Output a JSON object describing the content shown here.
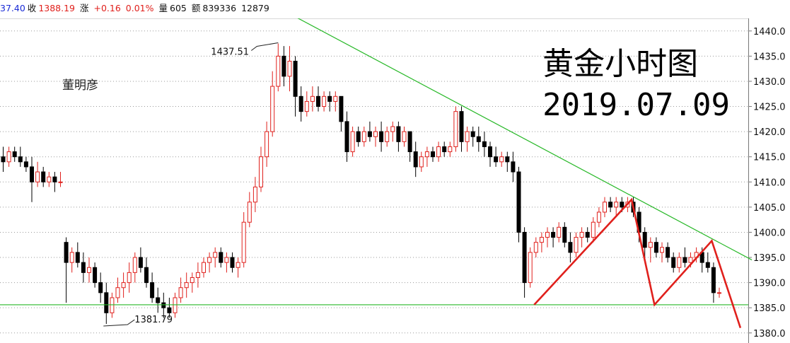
{
  "info_bar": {
    "open_label": "37.40",
    "close_label": "收",
    "close_value": "1388.19",
    "change_label": "涨",
    "change_value": "+0.16",
    "change_pct": "0.01%",
    "volume_label": "量",
    "volume_value": "605",
    "amount_label": "额",
    "amount_value": "839336",
    "extra_value": "12879"
  },
  "title_line1": "黄金小时图",
  "title_line2": "2019.07.09",
  "author": "董明彦",
  "colors": {
    "up": "#e0201c",
    "down": "#000000",
    "trendline": "#27b827",
    "pattern": "#e0201c",
    "support": "#27b827"
  },
  "chart_data": {
    "type": "candlestick",
    "ylim": [
      1378.0,
      1442.5
    ],
    "y_ticks": [
      "1440.0",
      "1435.0",
      "1430.0",
      "1425.0",
      "1420.0",
      "1415.0",
      "1410.0",
      "1405.0",
      "1400.0",
      "1395.0",
      "1390.0",
      "1385.0",
      "1380.0"
    ],
    "annotations": [
      {
        "text": "1437.51",
        "candle": 48,
        "price": 1437.51
      },
      {
        "text": "1381.79",
        "candle": 18,
        "price": 1381.79
      }
    ],
    "support_level": 1385.6,
    "trendline": {
      "from": [
        51,
        1443.0
      ],
      "to": [
        131,
        1394.5
      ]
    },
    "zigzag": [
      [
        93,
        1385.6
      ],
      [
        110,
        1406.5
      ],
      [
        114,
        1385.6
      ],
      [
        124,
        1398.3
      ],
      [
        129,
        1381.0
      ]
    ],
    "candles": [
      [
        1415,
        1417,
        1412,
        1414
      ],
      [
        1414,
        1417,
        1413,
        1416
      ],
      [
        1416,
        1417,
        1414,
        1415
      ],
      [
        1415,
        1417,
        1413,
        1414
      ],
      [
        1414,
        1415,
        1412,
        1413
      ],
      [
        1413,
        1415,
        1406,
        1410
      ],
      [
        1410,
        1414,
        1409,
        1412
      ],
      [
        1412,
        1413,
        1409,
        1410
      ],
      [
        1410,
        1412,
        1409,
        1411
      ],
      [
        1411,
        1412,
        1408,
        1410
      ],
      [
        1410,
        1412,
        1409,
        1410
      ],
      [
        1398,
        1399,
        1386,
        1394
      ],
      [
        1394,
        1397,
        1392,
        1396
      ],
      [
        1396,
        1398,
        1393,
        1394
      ],
      [
        1394,
        1396,
        1390,
        1392
      ],
      [
        1392,
        1395,
        1390,
        1393
      ],
      [
        1393,
        1394,
        1389,
        1390
      ],
      [
        1390,
        1392,
        1386,
        1388
      ],
      [
        1388,
        1390,
        1381.79,
        1384
      ],
      [
        1384,
        1388,
        1383,
        1387
      ],
      [
        1387,
        1391,
        1386,
        1389
      ],
      [
        1389,
        1392,
        1387,
        1390
      ],
      [
        1390,
        1394,
        1388,
        1392
      ],
      [
        1392,
        1396,
        1390,
        1395
      ],
      [
        1395,
        1397,
        1392,
        1393
      ],
      [
        1393,
        1395,
        1389,
        1390
      ],
      [
        1390,
        1392,
        1386,
        1387
      ],
      [
        1387,
        1389,
        1384,
        1386
      ],
      [
        1386,
        1388,
        1383,
        1385
      ],
      [
        1385,
        1387,
        1383,
        1384
      ],
      [
        1384,
        1388,
        1383,
        1387
      ],
      [
        1387,
        1391,
        1386,
        1389
      ],
      [
        1389,
        1392,
        1387,
        1390
      ],
      [
        1390,
        1392,
        1388,
        1391
      ],
      [
        1391,
        1394,
        1389,
        1392
      ],
      [
        1392,
        1395,
        1391,
        1394
      ],
      [
        1394,
        1396,
        1392,
        1395
      ],
      [
        1395,
        1397,
        1393,
        1396
      ],
      [
        1396,
        1397,
        1393,
        1394
      ],
      [
        1394,
        1396,
        1392,
        1395
      ],
      [
        1395,
        1396,
        1392,
        1393
      ],
      [
        1393,
        1395,
        1391,
        1394
      ],
      [
        1394,
        1404,
        1393,
        1402
      ],
      [
        1402,
        1408,
        1401,
        1406
      ],
      [
        1406,
        1411,
        1404,
        1409
      ],
      [
        1409,
        1417,
        1408,
        1415
      ],
      [
        1415,
        1422,
        1413,
        1420
      ],
      [
        1420,
        1432,
        1419,
        1429
      ],
      [
        1429,
        1437.51,
        1428,
        1435
      ],
      [
        1435,
        1437,
        1429,
        1431
      ],
      [
        1431,
        1437,
        1428,
        1434
      ],
      [
        1434,
        1435,
        1423,
        1427
      ],
      [
        1427,
        1429,
        1422,
        1424
      ],
      [
        1424,
        1428,
        1423,
        1426
      ],
      [
        1426,
        1429,
        1424,
        1427
      ],
      [
        1427,
        1429,
        1424,
        1425
      ],
      [
        1425,
        1428,
        1424,
        1427
      ],
      [
        1427,
        1428,
        1424,
        1426
      ],
      [
        1426,
        1428,
        1424,
        1427
      ],
      [
        1427,
        1427,
        1420,
        1422
      ],
      [
        1422,
        1424,
        1414,
        1416
      ],
      [
        1416,
        1421,
        1415,
        1420
      ],
      [
        1420,
        1421,
        1417,
        1418
      ],
      [
        1418,
        1421,
        1417,
        1420
      ],
      [
        1420,
        1422,
        1418,
        1419
      ],
      [
        1419,
        1421,
        1417,
        1420
      ],
      [
        1420,
        1422,
        1416,
        1418
      ],
      [
        1418,
        1421,
        1417,
        1420
      ],
      [
        1420,
        1422,
        1418,
        1421
      ],
      [
        1421,
        1422,
        1416,
        1418
      ],
      [
        1418,
        1421,
        1417,
        1420
      ],
      [
        1420,
        1420,
        1414,
        1416
      ],
      [
        1416,
        1418,
        1411,
        1413
      ],
      [
        1413,
        1416,
        1412,
        1415
      ],
      [
        1415,
        1417,
        1413,
        1416
      ],
      [
        1416,
        1417,
        1414,
        1415
      ],
      [
        1415,
        1418,
        1414,
        1417
      ],
      [
        1417,
        1418,
        1415,
        1416
      ],
      [
        1416,
        1418,
        1415,
        1417
      ],
      [
        1417,
        1425,
        1416,
        1424
      ],
      [
        1424,
        1425,
        1416,
        1418
      ],
      [
        1418,
        1421,
        1416,
        1420
      ],
      [
        1420,
        1421,
        1417,
        1419
      ],
      [
        1419,
        1421,
        1416,
        1418
      ],
      [
        1418,
        1420,
        1415,
        1417
      ],
      [
        1417,
        1418,
        1413,
        1415
      ],
      [
        1415,
        1417,
        1413,
        1414
      ],
      [
        1414,
        1416,
        1413,
        1415
      ],
      [
        1415,
        1416,
        1412,
        1414
      ],
      [
        1414,
        1416,
        1410,
        1412
      ],
      [
        1412,
        1413,
        1398,
        1400
      ],
      [
        1400,
        1401,
        1387,
        1390
      ],
      [
        1390,
        1397,
        1389,
        1396
      ],
      [
        1396,
        1399,
        1395,
        1398
      ],
      [
        1398,
        1400,
        1396,
        1399
      ],
      [
        1399,
        1401,
        1397,
        1400
      ],
      [
        1400,
        1401,
        1397,
        1399
      ],
      [
        1399,
        1402,
        1398,
        1401
      ],
      [
        1401,
        1402,
        1397,
        1398
      ],
      [
        1398,
        1400,
        1394,
        1396
      ],
      [
        1396,
        1400,
        1395,
        1399
      ],
      [
        1399,
        1401,
        1397,
        1400
      ],
      [
        1400,
        1401,
        1398,
        1399
      ],
      [
        1399,
        1403,
        1398,
        1402
      ],
      [
        1402,
        1405,
        1401,
        1404
      ],
      [
        1404,
        1407,
        1403,
        1406
      ],
      [
        1406,
        1407,
        1404,
        1405
      ],
      [
        1405,
        1407,
        1403,
        1406
      ],
      [
        1406,
        1407,
        1404,
        1405
      ],
      [
        1405,
        1407,
        1404,
        1406
      ],
      [
        1406,
        1407,
        1403,
        1404
      ],
      [
        1404,
        1405,
        1398,
        1400
      ],
      [
        1400,
        1401,
        1395,
        1397
      ],
      [
        1397,
        1399,
        1394,
        1398
      ],
      [
        1398,
        1399,
        1395,
        1396
      ],
      [
        1396,
        1398,
        1394,
        1397
      ],
      [
        1397,
        1398,
        1394,
        1395
      ],
      [
        1395,
        1396,
        1392,
        1393
      ],
      [
        1393,
        1396,
        1392,
        1395
      ],
      [
        1395,
        1397,
        1393,
        1394
      ],
      [
        1394,
        1396,
        1393,
        1395
      ],
      [
        1395,
        1397,
        1394,
        1396
      ],
      [
        1396,
        1397,
        1392,
        1394
      ],
      [
        1394,
        1396,
        1392,
        1393
      ],
      [
        1393,
        1394,
        1386,
        1388
      ],
      [
        1388,
        1389,
        1387,
        1388
      ]
    ]
  }
}
